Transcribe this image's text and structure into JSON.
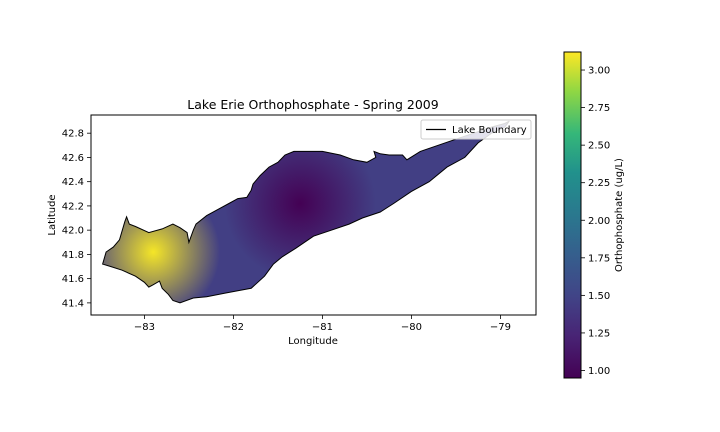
{
  "chart_data": {
    "type": "heatmap",
    "title": "Lake Erie Orthophosphate - Spring 2009",
    "xlabel": "Longitude",
    "ylabel": "Latitude",
    "xlim": [
      -83.6,
      -78.6
    ],
    "ylim": [
      41.3,
      42.95
    ],
    "xticks": [
      {
        "value": -83,
        "label": "−83"
      },
      {
        "value": -82,
        "label": "−82"
      },
      {
        "value": -81,
        "label": "−81"
      },
      {
        "value": -80,
        "label": "−80"
      },
      {
        "value": -79,
        "label": "−79"
      }
    ],
    "yticks": [
      {
        "value": 41.4,
        "label": "41.4"
      },
      {
        "value": 41.6,
        "label": "41.6"
      },
      {
        "value": 41.8,
        "label": "41.8"
      },
      {
        "value": 42.0,
        "label": "42.0"
      },
      {
        "value": 42.2,
        "label": "42.2"
      },
      {
        "value": 42.4,
        "label": "42.4"
      },
      {
        "value": 42.6,
        "label": "42.6"
      },
      {
        "value": 42.8,
        "label": "42.8"
      }
    ],
    "colorbar": {
      "label": "Orthophosphate (ug/L)",
      "colormap": "viridis",
      "range": [
        0.95,
        3.12
      ],
      "ticks": [
        {
          "value": 1.0,
          "label": "1.00"
        },
        {
          "value": 1.25,
          "label": "1.25"
        },
        {
          "value": 1.5,
          "label": "1.50"
        },
        {
          "value": 1.75,
          "label": "1.75"
        },
        {
          "value": 2.0,
          "label": "2.00"
        },
        {
          "value": 2.25,
          "label": "2.25"
        },
        {
          "value": 2.5,
          "label": "2.50"
        },
        {
          "value": 2.75,
          "label": "2.75"
        },
        {
          "value": 3.0,
          "label": "3.00"
        }
      ]
    },
    "legend": {
      "placement": "top-right",
      "entries": [
        {
          "label": "Lake Boundary",
          "style": "line",
          "color": "#000000"
        }
      ]
    },
    "field": {
      "background": 1.45,
      "features": [
        {
          "lon": -82.9,
          "lat": 41.82,
          "peak": 3.1,
          "radius_deg": 0.75
        },
        {
          "lon": -81.25,
          "lat": 42.22,
          "peak": 0.95,
          "radius_deg": 0.85
        }
      ]
    },
    "boundary": [
      [
        -83.47,
        41.72
      ],
      [
        -83.43,
        41.82
      ],
      [
        -83.35,
        41.86
      ],
      [
        -83.28,
        41.92
      ],
      [
        -83.22,
        42.07
      ],
      [
        -83.2,
        42.11
      ],
      [
        -83.17,
        42.05
      ],
      [
        -83.1,
        42.03
      ],
      [
        -82.95,
        41.98
      ],
      [
        -82.8,
        42.01
      ],
      [
        -82.68,
        42.05
      ],
      [
        -82.6,
        42.02
      ],
      [
        -82.52,
        41.98
      ],
      [
        -82.5,
        41.9
      ],
      [
        -82.45,
        42.0
      ],
      [
        -82.42,
        42.05
      ],
      [
        -82.3,
        42.12
      ],
      [
        -82.15,
        42.18
      ],
      [
        -82.05,
        42.22
      ],
      [
        -81.95,
        42.26
      ],
      [
        -81.85,
        42.27
      ],
      [
        -81.8,
        42.33
      ],
      [
        -81.78,
        42.38
      ],
      [
        -81.7,
        42.45
      ],
      [
        -81.6,
        42.52
      ],
      [
        -81.5,
        42.56
      ],
      [
        -81.42,
        42.62
      ],
      [
        -81.32,
        42.65
      ],
      [
        -81.0,
        42.65
      ],
      [
        -80.8,
        42.62
      ],
      [
        -80.65,
        42.58
      ],
      [
        -80.5,
        42.56
      ],
      [
        -80.4,
        42.6
      ],
      [
        -80.42,
        42.65
      ],
      [
        -80.35,
        42.63
      ],
      [
        -80.25,
        42.62
      ],
      [
        -80.1,
        42.62
      ],
      [
        -80.05,
        42.58
      ],
      [
        -79.9,
        42.65
      ],
      [
        -79.7,
        42.7
      ],
      [
        -79.5,
        42.75
      ],
      [
        -79.3,
        42.8
      ],
      [
        -79.1,
        42.85
      ],
      [
        -78.95,
        42.88
      ],
      [
        -78.9,
        42.9
      ],
      [
        -78.95,
        42.85
      ],
      [
        -79.1,
        42.8
      ],
      [
        -79.25,
        42.72
      ],
      [
        -79.4,
        42.6
      ],
      [
        -79.6,
        42.52
      ],
      [
        -79.8,
        42.4
      ],
      [
        -80.0,
        42.32
      ],
      [
        -80.2,
        42.22
      ],
      [
        -80.35,
        42.15
      ],
      [
        -80.55,
        42.1
      ],
      [
        -80.7,
        42.05
      ],
      [
        -80.9,
        42.0
      ],
      [
        -81.1,
        41.95
      ],
      [
        -81.3,
        41.85
      ],
      [
        -81.45,
        41.78
      ],
      [
        -81.55,
        41.72
      ],
      [
        -81.65,
        41.62
      ],
      [
        -81.8,
        41.52
      ],
      [
        -81.95,
        41.5
      ],
      [
        -82.1,
        41.48
      ],
      [
        -82.3,
        41.45
      ],
      [
        -82.45,
        41.44
      ],
      [
        -82.6,
        41.4
      ],
      [
        -82.68,
        41.42
      ],
      [
        -82.73,
        41.47
      ],
      [
        -82.8,
        41.52
      ],
      [
        -82.83,
        41.58
      ],
      [
        -82.9,
        41.55
      ],
      [
        -82.95,
        41.53
      ],
      [
        -83.0,
        41.57
      ],
      [
        -83.1,
        41.62
      ],
      [
        -83.25,
        41.67
      ],
      [
        -83.38,
        41.7
      ],
      [
        -83.47,
        41.72
      ]
    ]
  }
}
